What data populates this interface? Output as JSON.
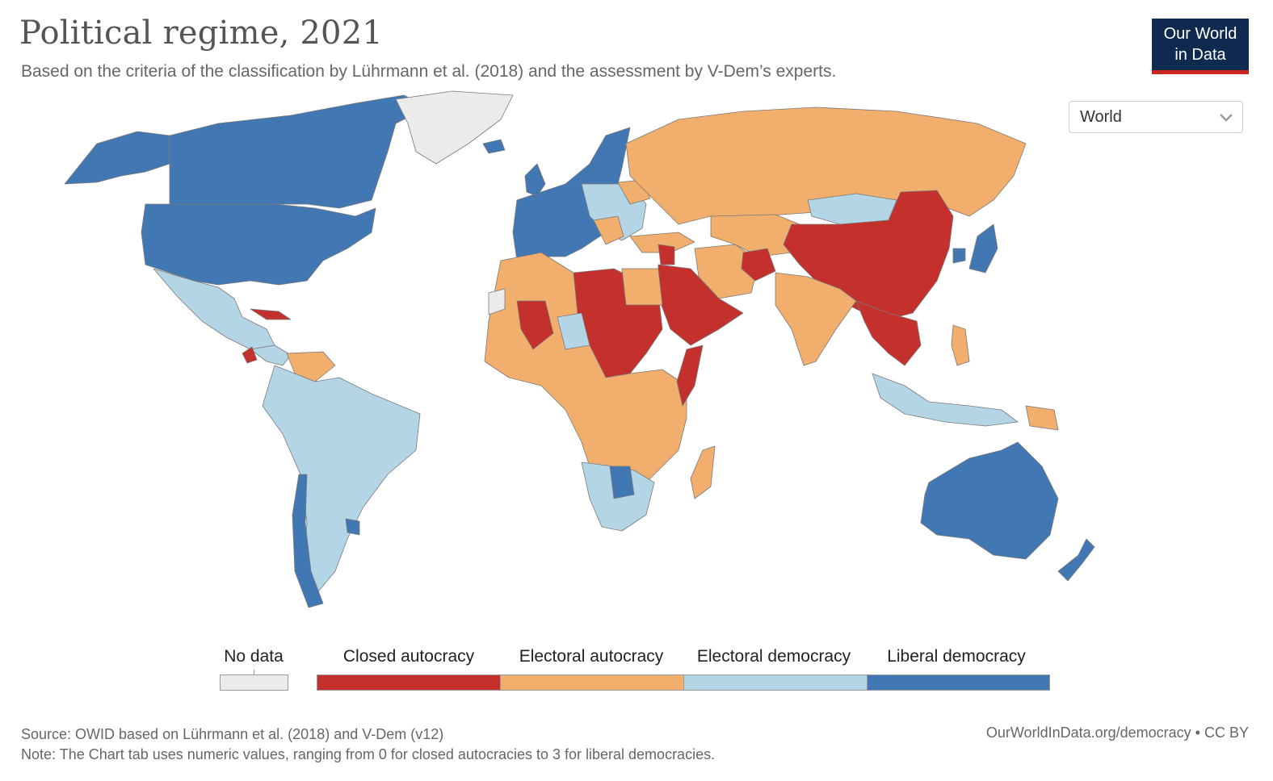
{
  "header": {
    "title": "Political regime, 2021",
    "subtitle": "Based on the criteria of the classification by Lührmann et al. (2018) and the assessment by V-Dem’s experts."
  },
  "logo": {
    "line1": "Our World",
    "line2": "in Data"
  },
  "region_selector": {
    "value": "World"
  },
  "legend": {
    "items": [
      {
        "label": "No data",
        "color": "#ebebeb"
      },
      {
        "label": "Closed autocracy",
        "color": "#c4302b"
      },
      {
        "label": "Electoral autocracy",
        "color": "#f1ae6c"
      },
      {
        "label": "Electoral democracy",
        "color": "#b3d5e6"
      },
      {
        "label": "Liberal democracy",
        "color": "#4178b3"
      }
    ]
  },
  "colors": {
    "no_data": "#ebebeb",
    "closed_autocracy": "#c4302b",
    "electoral_autocracy": "#f1ae6c",
    "electoral_democracy": "#b3d5e6",
    "liberal_democracy": "#4178b3"
  },
  "footer": {
    "source": "Source: OWID based on Lührmann et al. (2018) and V-Dem (v12)",
    "note": "Note: The Chart tab uses numeric values, ranging from 0 for closed autocracies to 3 for liberal democracies.",
    "link": "OurWorldInData.org/democracy",
    "license": " • CC BY"
  }
}
